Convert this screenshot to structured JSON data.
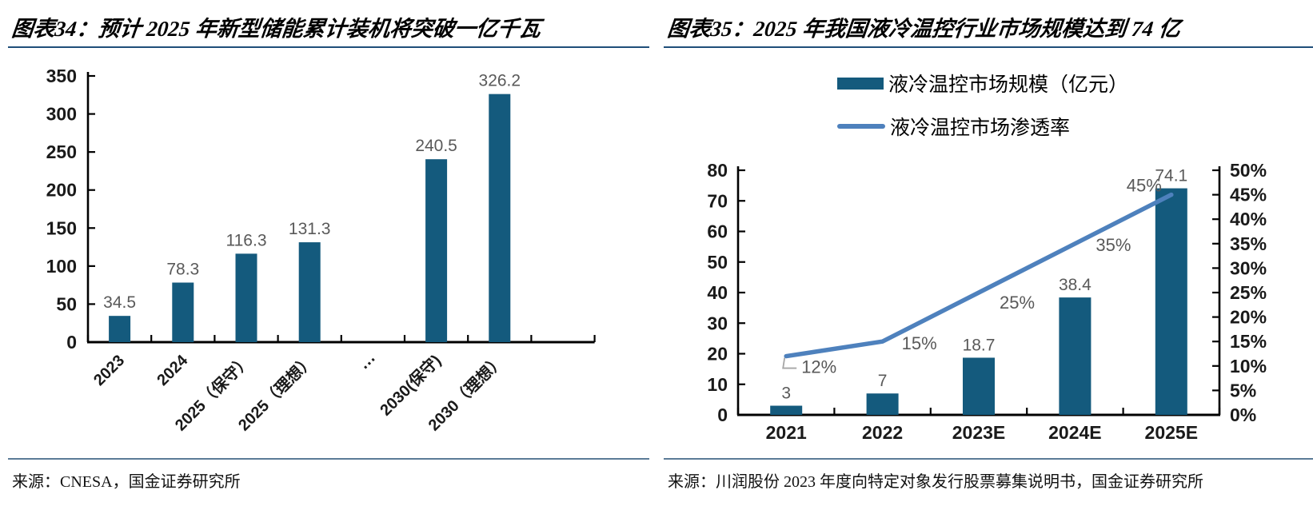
{
  "left_panel": {
    "title": "图表34：预计 2025 年新型储能累计装机将突破一亿千瓦",
    "source": "来源：CNESA，国金证券研究所"
  },
  "right_panel": {
    "title": "图表35：2025 年我国液冷温控行业市场规模达到 74 亿",
    "source": "来源：川润股份 2023 年度向特定对象发行股票募集说明书，国金证券研究所",
    "legend": [
      {
        "label": "液冷温控市场规模（亿元）",
        "swatch": "bar"
      },
      {
        "label": "液冷温控市场渗透率",
        "swatch": "line"
      }
    ]
  },
  "colors": {
    "bar": "#145A7D",
    "line": "#4E81BD",
    "data_label": "#595959",
    "axis": "#000000",
    "title_rule": "#1F4E79",
    "source_rule": "#5B7B97",
    "leader": "#A6A6A6"
  },
  "chart_data": [
    {
      "type": "bar",
      "title": "预计 2025 年新型储能累计装机将突破一亿千瓦",
      "categories": [
        "2023",
        "2024",
        "2025（保守）",
        "2025（理想）",
        "⋯",
        "2030(保守)",
        "2030（理想）",
        ""
      ],
      "values": [
        34.5,
        78.3,
        116.3,
        131.3,
        null,
        240.5,
        326.2,
        null
      ],
      "ylim": [
        0,
        350
      ],
      "ytick_step": 50,
      "grid": false,
      "legend_position": "none"
    },
    {
      "type": "bar+line",
      "title": "2025 年我国液冷温控行业市场规模达到 74 亿",
      "categories": [
        "2021",
        "2022",
        "2023E",
        "2024E",
        "2025E"
      ],
      "series": [
        {
          "name": "液冷温控市场规模（亿元）",
          "type": "bar",
          "axis": "left",
          "values": [
            3,
            7,
            18.7,
            38.4,
            74.1
          ]
        },
        {
          "name": "液冷温控市场渗透率",
          "type": "line",
          "axis": "right",
          "values": [
            12,
            15,
            25,
            35,
            45
          ],
          "unit": "%"
        }
      ],
      "left_ylim": [
        0,
        80
      ],
      "left_ytick_step": 10,
      "right_ylim": [
        0,
        50
      ],
      "right_ytick_step": 5,
      "grid": false,
      "legend_position": "top"
    }
  ]
}
